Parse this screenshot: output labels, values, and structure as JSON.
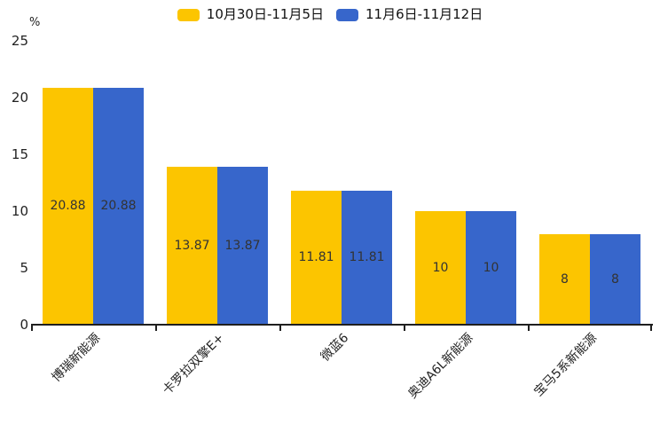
{
  "chart_data": {
    "type": "bar",
    "title": "",
    "unit_label": "%",
    "categories": [
      "博瑞新能源",
      "卡罗拉双擎E+",
      "微蓝6",
      "奥迪A6L新能源",
      "宝马5系新能源"
    ],
    "series": [
      {
        "name": "10月30日-11月5日",
        "color": "#FCC500",
        "values": [
          20.88,
          13.87,
          11.81,
          10,
          8
        ]
      },
      {
        "name": "11月6日-11月12日",
        "color": "#3766CB",
        "values": [
          20.88,
          13.87,
          11.81,
          10,
          8
        ]
      }
    ],
    "value_labels": [
      [
        "20.88",
        "13.87",
        "11.81",
        "10",
        "8"
      ],
      [
        "20.88",
        "13.87",
        "11.81",
        "10",
        "8"
      ]
    ],
    "ylim": [
      0,
      25
    ],
    "yticks": [
      0,
      5,
      10,
      15,
      20,
      25
    ],
    "xlabel": "",
    "ylabel": "",
    "grid": false,
    "legend_position": "top",
    "bar_label_color": "#333333",
    "axis_color": "#1f1f1f",
    "tick_label_color": "#222222"
  }
}
